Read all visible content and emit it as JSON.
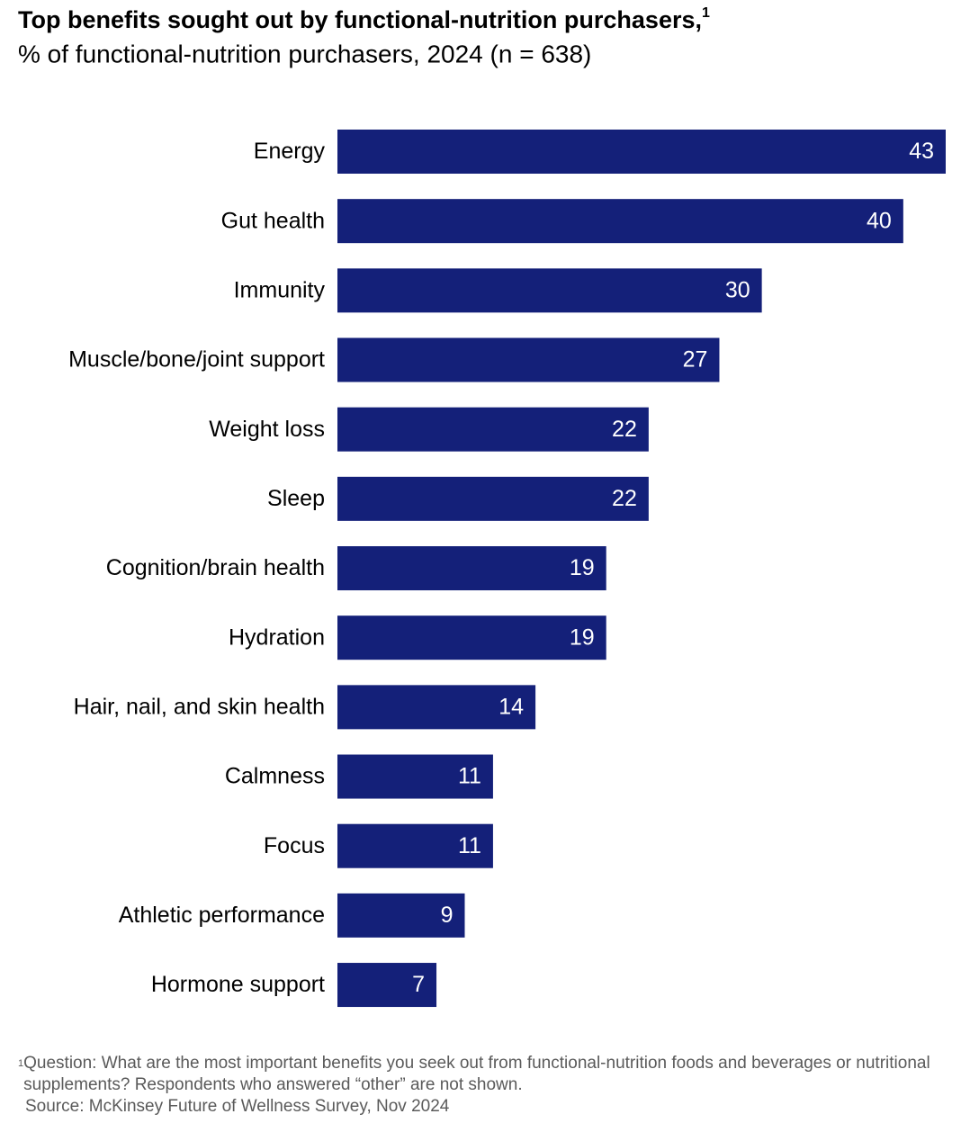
{
  "chart_data": {
    "type": "bar",
    "orientation": "horizontal",
    "title": "Top benefits sought out by functional-nutrition purchasers,",
    "title_note": "1",
    "subtitle": "% of functional-nutrition purchasers, 2024 (n = 638)",
    "categories": [
      "Energy",
      "Gut health",
      "Immunity",
      "Muscle/bone/joint support",
      "Weight loss",
      "Sleep",
      "Cognition/brain health",
      "Hydration",
      "Hair, nail, and skin health",
      "Calmness",
      "Focus",
      "Athletic performance",
      "Hormone support"
    ],
    "values": [
      43,
      40,
      30,
      27,
      22,
      22,
      19,
      19,
      14,
      11,
      11,
      9,
      7
    ],
    "color": "#142079",
    "footnote_marker": "1",
    "footnote": "Question: What are the most important benefits you seek out from functional-nutrition foods and beverages or nutritional supplements? Respondents who answered “other” are not shown.",
    "source": "Source: McKinsey Future of Wellness Survey, Nov 2024"
  }
}
